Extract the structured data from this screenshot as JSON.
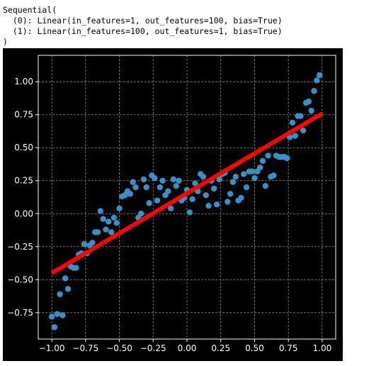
{
  "console": {
    "lines": [
      "Sequential(",
      "  (0): Linear(in_features=1, out_features=100, bias=True)",
      "  (1): Linear(in_features=100, out_features=1, bias=True)",
      ")"
    ]
  },
  "colors": {
    "figure_background": "#000000",
    "axes_background": "#000000",
    "spine": "#ffffff",
    "grid": "#888888",
    "tick_text": "#ffffff",
    "scatter": "#3a8fc4",
    "fit_line": "#ff0000"
  },
  "chart_data": {
    "type": "scatter",
    "title": "",
    "xlabel": "",
    "ylabel": "",
    "xlim": [
      -1.1,
      1.1
    ],
    "ylim": [
      -0.95,
      1.2
    ],
    "grid": true,
    "grid_style": "dashed",
    "x_ticks": [
      -1.0,
      -0.75,
      -0.5,
      -0.25,
      0.0,
      0.25,
      0.5,
      0.75,
      1.0
    ],
    "x_tick_labels": [
      "−1.00",
      "−0.75",
      "−0.50",
      "−0.25",
      "0.00",
      "0.25",
      "0.50",
      "0.75",
      "1.00"
    ],
    "y_ticks": [
      -0.75,
      -0.5,
      -0.25,
      0.0,
      0.25,
      0.5,
      0.75,
      1.0
    ],
    "y_tick_labels": [
      "−0.75",
      "−0.50",
      "−0.25",
      "0.00",
      "0.25",
      "0.50",
      "0.75",
      "1.00"
    ],
    "series": [
      {
        "type": "scatter",
        "points": [
          [
            -1.0,
            -0.78
          ],
          [
            -0.98,
            -0.86
          ],
          [
            -0.96,
            -0.76
          ],
          [
            -0.94,
            -0.61
          ],
          [
            -0.92,
            -0.77
          ],
          [
            -0.9,
            -0.49
          ],
          [
            -0.88,
            -0.57
          ],
          [
            -0.86,
            -0.4
          ],
          [
            -0.84,
            -0.41
          ],
          [
            -0.82,
            -0.41
          ],
          [
            -0.8,
            -0.31
          ],
          [
            -0.78,
            -0.3
          ],
          [
            -0.76,
            -0.23
          ],
          [
            -0.74,
            -0.3
          ],
          [
            -0.72,
            -0.24
          ],
          [
            -0.7,
            -0.22
          ],
          [
            -0.68,
            -0.14
          ],
          [
            -0.66,
            -0.14
          ],
          [
            -0.64,
            0.02
          ],
          [
            -0.62,
            -0.04
          ],
          [
            -0.6,
            -0.12
          ],
          [
            -0.58,
            -0.06
          ],
          [
            -0.56,
            -0.14
          ],
          [
            -0.54,
            -0.03
          ],
          [
            -0.52,
            -0.07
          ],
          [
            -0.5,
            0.04
          ],
          [
            -0.48,
            0.13
          ],
          [
            -0.46,
            0.14
          ],
          [
            -0.44,
            0.17
          ],
          [
            -0.42,
            0.15
          ],
          [
            -0.4,
            0.24
          ],
          [
            -0.38,
            0.2
          ],
          [
            -0.36,
            -0.03
          ],
          [
            -0.34,
            0.0
          ],
          [
            -0.32,
            0.26
          ],
          [
            -0.3,
            0.2
          ],
          [
            -0.28,
            0.08
          ],
          [
            -0.26,
            0.29
          ],
          [
            -0.24,
            0.27
          ],
          [
            -0.22,
            0.1
          ],
          [
            -0.2,
            0.2
          ],
          [
            -0.18,
            0.25
          ],
          [
            -0.16,
            0.14
          ],
          [
            -0.14,
            0.17
          ],
          [
            -0.12,
            0.04
          ],
          [
            -0.1,
            0.26
          ],
          [
            -0.08,
            0.21
          ],
          [
            -0.06,
            0.25
          ],
          [
            -0.04,
            0.1
          ],
          [
            -0.02,
            0.12
          ],
          [
            0.0,
            0.18
          ],
          [
            0.02,
            0.01
          ],
          [
            0.04,
            0.11
          ],
          [
            0.06,
            0.23
          ],
          [
            0.08,
            0.17
          ],
          [
            0.1,
            0.3
          ],
          [
            0.12,
            0.28
          ],
          [
            0.14,
            0.14
          ],
          [
            0.16,
            0.06
          ],
          [
            0.18,
            0.25
          ],
          [
            0.2,
            0.19
          ],
          [
            0.22,
            0.07
          ],
          [
            0.24,
            0.26
          ],
          [
            0.26,
            0.3
          ],
          [
            0.28,
            0.31
          ],
          [
            0.3,
            0.09
          ],
          [
            0.32,
            0.15
          ],
          [
            0.34,
            0.24
          ],
          [
            0.36,
            0.28
          ],
          [
            0.38,
            0.1
          ],
          [
            0.4,
            0.12
          ],
          [
            0.42,
            0.3
          ],
          [
            0.44,
            0.2
          ],
          [
            0.46,
            0.32
          ],
          [
            0.48,
            0.32
          ],
          [
            0.5,
            0.27
          ],
          [
            0.52,
            0.32
          ],
          [
            0.54,
            0.35
          ],
          [
            0.56,
            0.4
          ],
          [
            0.58,
            0.21
          ],
          [
            0.6,
            0.44
          ],
          [
            0.62,
            0.28
          ],
          [
            0.64,
            0.29
          ],
          [
            0.66,
            0.44
          ],
          [
            0.68,
            0.43
          ],
          [
            0.7,
            0.43
          ],
          [
            0.72,
            0.43
          ],
          [
            0.74,
            0.42
          ],
          [
            0.76,
            0.58
          ],
          [
            0.78,
            0.69
          ],
          [
            0.8,
            0.59
          ],
          [
            0.82,
            0.74
          ],
          [
            0.84,
            0.74
          ],
          [
            0.86,
            0.63
          ],
          [
            0.88,
            0.84
          ],
          [
            0.9,
            0.85
          ],
          [
            0.92,
            0.78
          ],
          [
            0.94,
            0.93
          ],
          [
            0.96,
            1.01
          ],
          [
            0.98,
            1.05
          ]
        ]
      },
      {
        "type": "line",
        "x": [
          -1.0,
          1.0
        ],
        "y": [
          -0.45,
          0.76
        ]
      }
    ]
  }
}
